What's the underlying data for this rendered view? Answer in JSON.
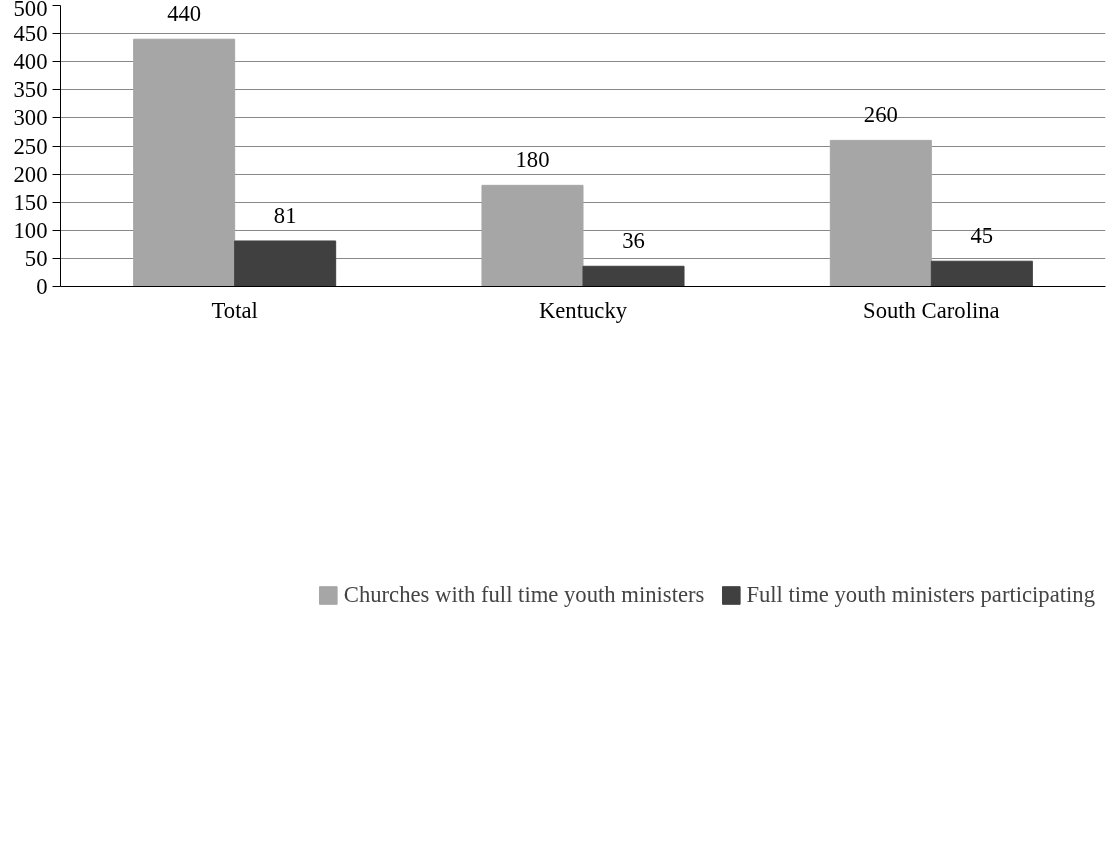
{
  "chart_data": {
    "type": "bar",
    "categories": [
      "Total",
      "Kentucky",
      "South Carolina"
    ],
    "series": [
      {
        "name": "Churches with full time youth ministers",
        "color": "#a6a6a6",
        "values": [
          440,
          180,
          260
        ]
      },
      {
        "name": "Full time youth ministers participating",
        "color": "#404040",
        "values": [
          81,
          36,
          45
        ]
      }
    ],
    "ylim": [
      0,
      500
    ],
    "yticks": [
      0,
      50,
      100,
      150,
      200,
      250,
      300,
      350,
      400,
      450,
      500
    ],
    "grid": "y",
    "legend": "bottom",
    "data_labels": true
  }
}
